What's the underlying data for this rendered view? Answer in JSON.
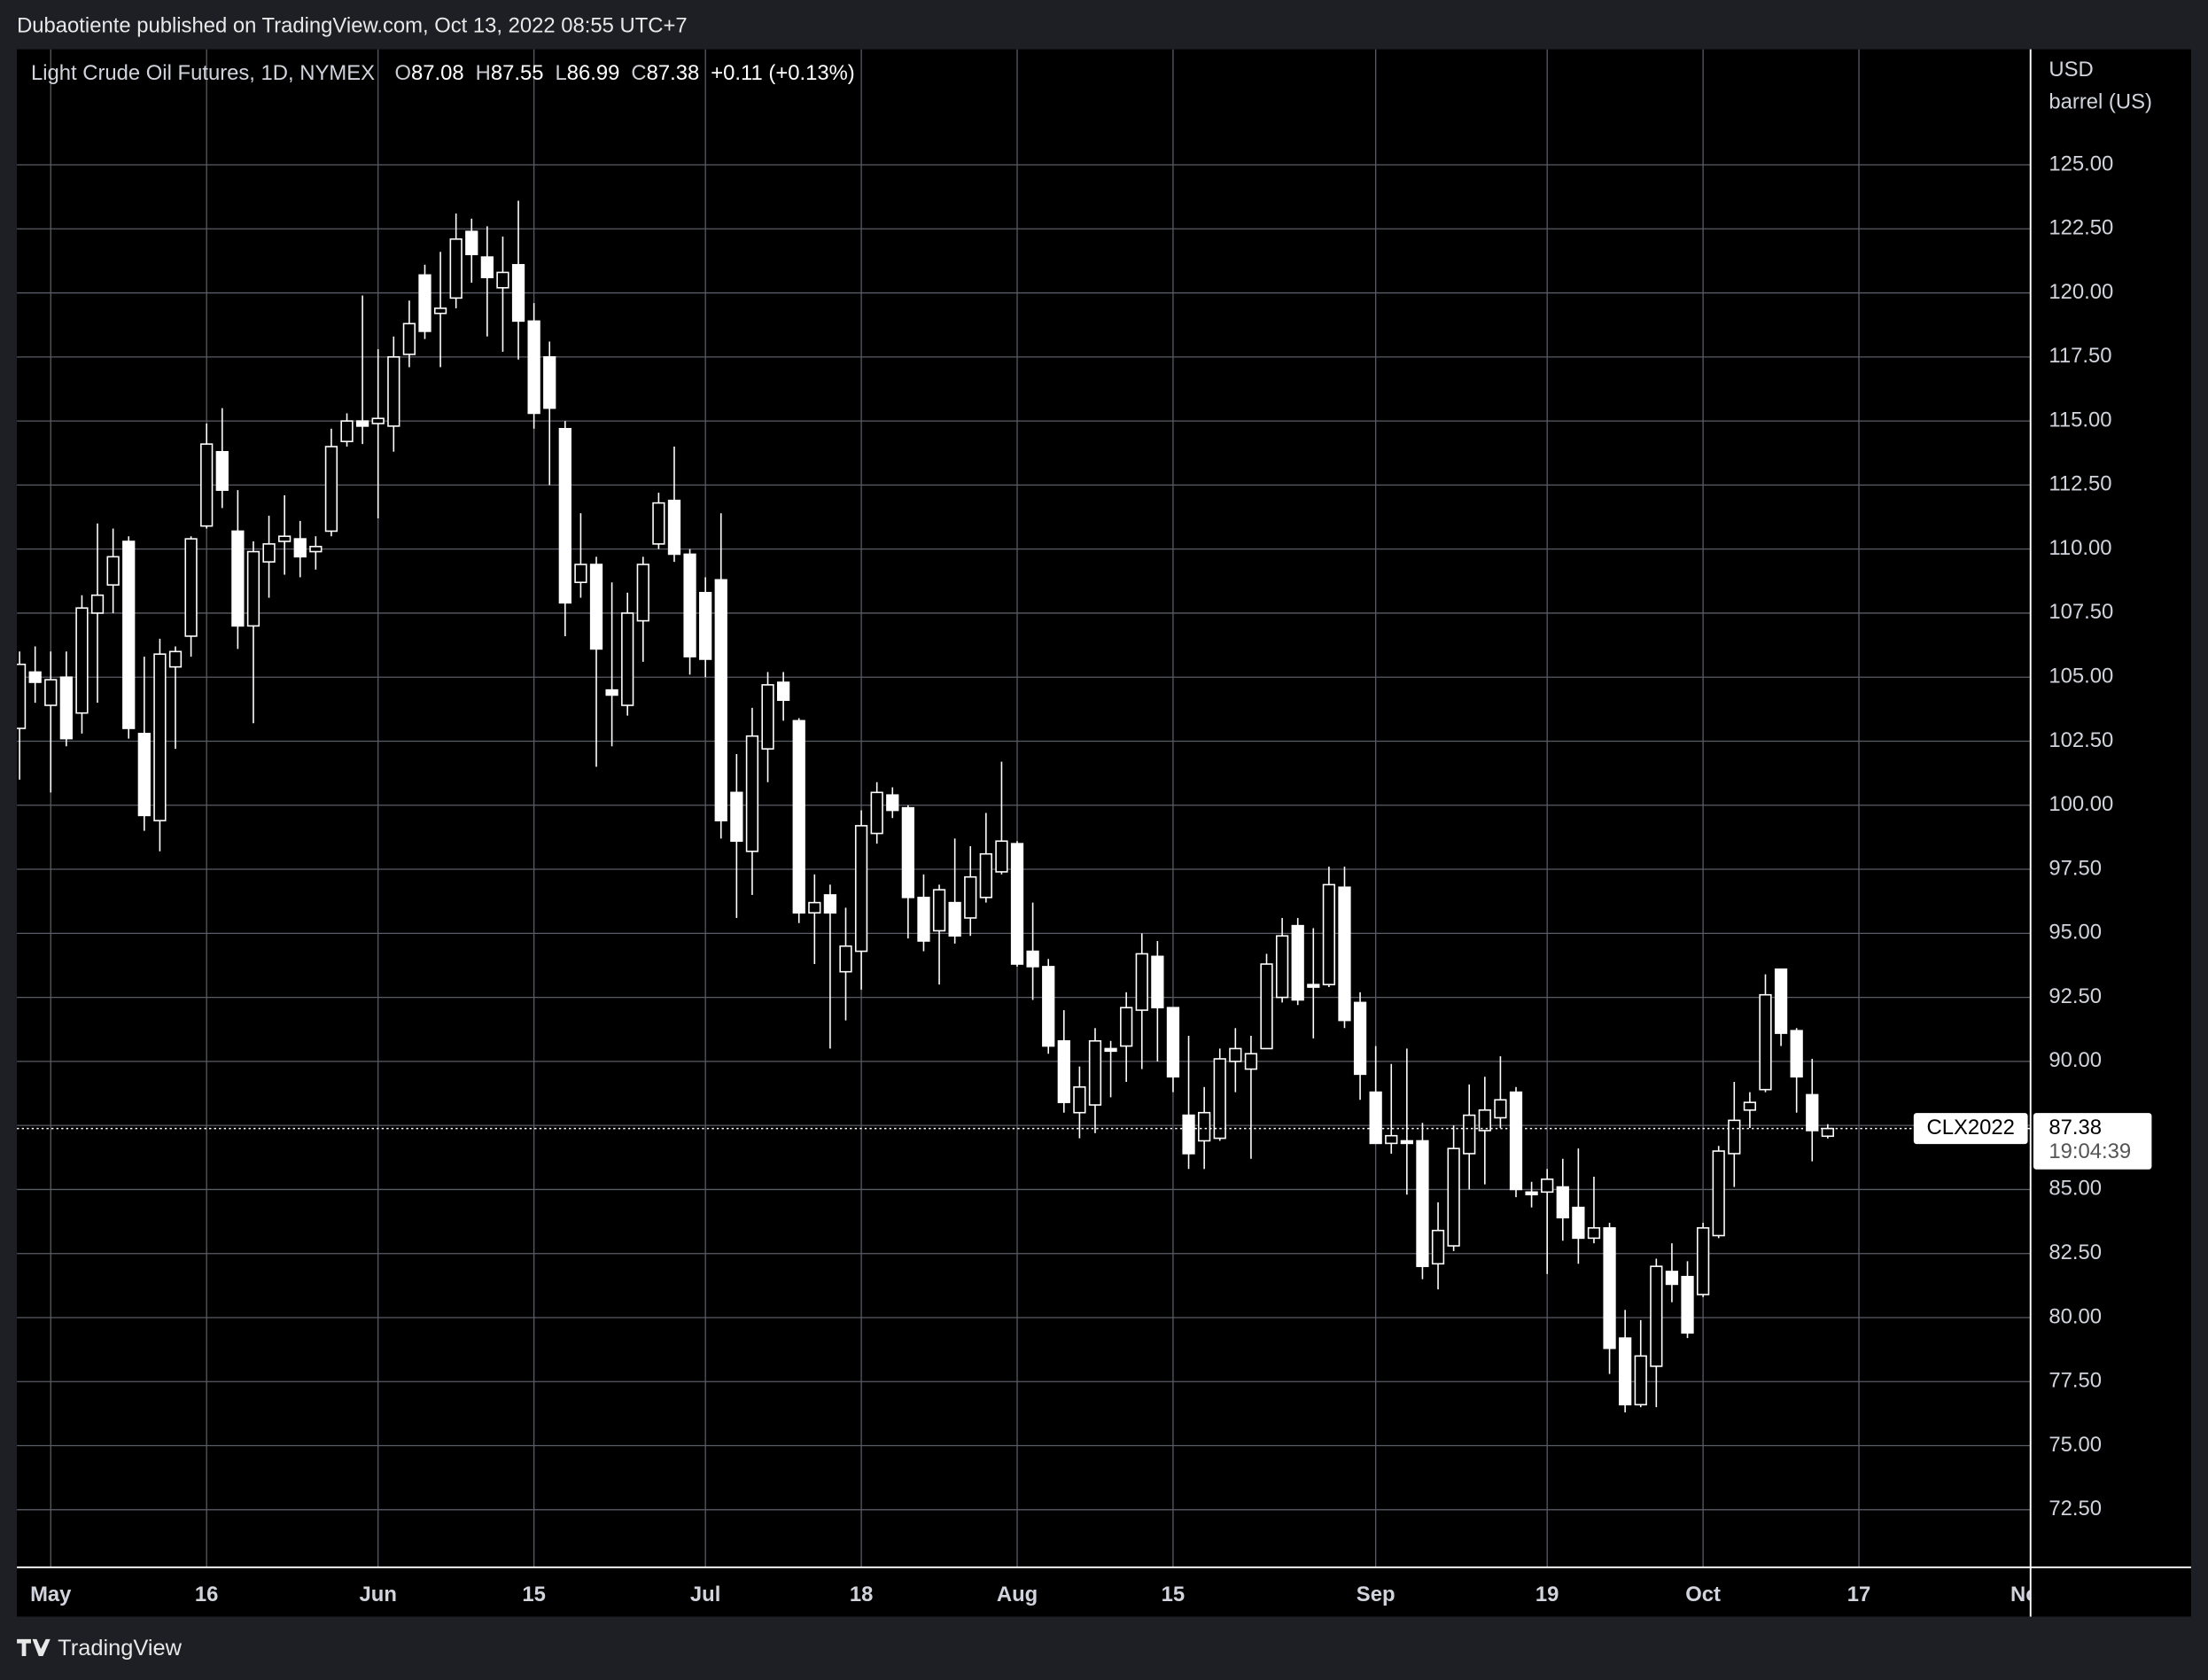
{
  "published_by": "Dubaotiente published on TradingView.com, Oct 13, 2022 08:55 UTC+7",
  "footer": "TradingView",
  "chart_data": {
    "type": "candlestick",
    "title": "Light Crude Oil Futures, 1D, NYMEX",
    "ohlc_labels": {
      "open": "O",
      "high": "H",
      "low": "L",
      "close": "C"
    },
    "change": "+0.11 (+0.13%)",
    "y_unit": "USD",
    "y_label": "barrel (US)",
    "countdown": "19:04:39",
    "grid": true,
    "grid_color": "#5a5d66",
    "x": [
      0,
      1,
      2,
      3,
      4,
      5,
      6,
      7,
      8,
      9,
      10,
      11,
      12,
      13,
      14,
      15,
      16,
      17,
      18,
      19,
      20,
      21,
      22,
      23,
      24,
      25,
      26,
      27,
      28,
      29,
      30,
      31,
      32,
      33,
      34,
      35,
      36,
      37,
      38,
      39,
      40,
      41,
      42,
      43,
      44,
      45,
      46,
      47,
      48,
      49,
      50,
      51,
      52,
      53,
      54,
      55,
      56,
      57,
      58,
      59,
      60,
      61,
      62,
      63,
      64,
      65,
      66,
      67,
      68,
      69,
      70,
      71,
      72,
      73,
      74,
      75,
      76,
      77,
      78,
      79,
      80,
      81,
      82,
      83,
      84,
      85,
      86,
      87,
      88,
      89,
      90,
      91,
      92,
      93,
      94,
      95,
      96,
      97,
      98,
      99,
      100,
      101,
      102,
      103,
      104,
      105,
      106,
      107,
      108,
      109,
      110,
      111,
      112,
      113,
      114,
      115,
      116
    ],
    "xlim": [
      -0.17,
      129.01
    ],
    "xticks": [
      {
        "value": 2,
        "label": "May"
      },
      {
        "value": 12,
        "label": "16"
      },
      {
        "value": 23,
        "label": "Jun"
      },
      {
        "value": 33,
        "label": "15"
      },
      {
        "value": 44,
        "label": "Jul"
      },
      {
        "value": 54,
        "label": "18"
      },
      {
        "value": 64,
        "label": "Aug"
      },
      {
        "value": 74,
        "label": "15"
      },
      {
        "value": 87,
        "label": "Sep"
      },
      {
        "value": 98,
        "label": "19"
      },
      {
        "value": 108,
        "label": "Oct"
      },
      {
        "value": 118,
        "label": "17"
      },
      {
        "value": 129,
        "label": "Nov"
      }
    ],
    "ylim": [
      70.25,
      129.51
    ],
    "yticks": [
      {
        "value": 72.5,
        "label": "72.50"
      },
      {
        "value": 75,
        "label": "75.00"
      },
      {
        "value": 77.5,
        "label": "77.50"
      },
      {
        "value": 80,
        "label": "80.00"
      },
      {
        "value": 82.5,
        "label": "82.50"
      },
      {
        "value": 85,
        "label": "85.00"
      },
      {
        "value": 87.5,
        "label": "87.50"
      },
      {
        "value": 90,
        "label": "90.00"
      },
      {
        "value": 92.5,
        "label": "92.50"
      },
      {
        "value": 95,
        "label": "95.00"
      },
      {
        "value": 97.5,
        "label": "97.50"
      },
      {
        "value": 100,
        "label": "100.00"
      },
      {
        "value": 102.5,
        "label": "102.50"
      },
      {
        "value": 105,
        "label": "105.00"
      },
      {
        "value": 107.5,
        "label": "107.50"
      },
      {
        "value": 110,
        "label": "110.00"
      },
      {
        "value": 112.5,
        "label": "112.50"
      },
      {
        "value": 115,
        "label": "115.00"
      },
      {
        "value": 117.5,
        "label": "117.50"
      },
      {
        "value": 120,
        "label": "120.00"
      },
      {
        "value": 122.5,
        "label": "122.50"
      },
      {
        "value": 125,
        "label": "125.00"
      }
    ],
    "series": [
      {
        "name": "CLX2022",
        "color": "#ffffff",
        "open": [
          103,
          105.2,
          103.9,
          105,
          103.6,
          107.5,
          108.6,
          110.3,
          102.8,
          99.4,
          105.4,
          106.6,
          110.9,
          113.8,
          110.7,
          107,
          109.5,
          110.3,
          110.4,
          109.9,
          110.7,
          114.2,
          115,
          114.9,
          114.8,
          117.6,
          120.7,
          119.2,
          119.8,
          122.4,
          121.4,
          120.2,
          121.1,
          118.9,
          117.5,
          114.7,
          108.7,
          109.4,
          104.5,
          103.9,
          107.2,
          110.2,
          111.9,
          109.8,
          108.3,
          108.8,
          100.5,
          98.2,
          102.2,
          104.8,
          103.3,
          95.8,
          96.5,
          93.5,
          94.3,
          98.9,
          100.4,
          99.9,
          96.4,
          95.1,
          96.2,
          95.6,
          96.4,
          97.4,
          98.5,
          94.3,
          93.7,
          90.8,
          88,
          88.3,
          90.5,
          90.6,
          92,
          94.1,
          92.1,
          87.9,
          86.9,
          87,
          90,
          89.7,
          90.5,
          92.5,
          95.3,
          93,
          93,
          96.8,
          92.3,
          88.8,
          86.8,
          86.9,
          86.9,
          82.1,
          82.8,
          86.4,
          87.3,
          87.8,
          88.8,
          84.9,
          84.9,
          85.1,
          84.3,
          83.1,
          83.5,
          79.2,
          76.6,
          78.1,
          81.8,
          81.6,
          80.9,
          83.2,
          86.4,
          88.1,
          88.9,
          93.6,
          91.2,
          88.7,
          87.08
        ],
        "high": [
          106,
          106.2,
          106,
          106,
          108.2,
          111,
          110.8,
          110.5,
          105.8,
          106.5,
          106.2,
          110.5,
          114.9,
          115.5,
          112.3,
          110.3,
          111.3,
          112.1,
          111.1,
          110.5,
          114.7,
          115.3,
          119.9,
          117.8,
          118.3,
          119.7,
          121.1,
          121.6,
          123.1,
          122.9,
          122.6,
          122.2,
          123.6,
          119.6,
          118.1,
          115,
          111.4,
          109.7,
          108.7,
          108.3,
          109.7,
          112.2,
          114,
          110,
          108.9,
          111.4,
          102,
          103.8,
          105.2,
          105.2,
          103.4,
          97.3,
          96.9,
          96,
          99.8,
          100.9,
          100.7,
          100,
          97.3,
          96.9,
          98.7,
          98.4,
          99.7,
          101.7,
          98.6,
          96.2,
          94,
          92,
          89.8,
          91.3,
          90.8,
          92.7,
          95,
          94.7,
          92.1,
          91,
          89,
          90.5,
          91.3,
          91,
          94.2,
          95.6,
          95.6,
          95.2,
          97.6,
          97.6,
          92.7,
          90.6,
          89.9,
          90.5,
          87.6,
          84.5,
          87.5,
          89.1,
          89.4,
          90.2,
          89,
          85.3,
          85.8,
          86.2,
          86.6,
          85.5,
          83.7,
          80.3,
          79.9,
          82.3,
          82.9,
          82.2,
          83.7,
          86.7,
          89.2,
          88.8,
          93.4,
          93.6,
          91.3,
          90.1,
          87.55
        ],
        "low": [
          101,
          104,
          100.5,
          102.3,
          102.8,
          104,
          107.5,
          102.6,
          99,
          98.2,
          102.2,
          105.8,
          110.8,
          111.6,
          106.1,
          103.2,
          108.1,
          109,
          108.9,
          109.2,
          110.5,
          114,
          114.1,
          111.2,
          113.8,
          117.1,
          118.2,
          117.1,
          119.4,
          120.4,
          118.3,
          117.7,
          117.4,
          114.7,
          112.5,
          106.6,
          108.1,
          101.5,
          102.3,
          103.5,
          105.6,
          110,
          109.5,
          105.1,
          105,
          98.7,
          95.6,
          96.5,
          100.9,
          103.3,
          95.4,
          93.8,
          90.5,
          91.6,
          92.8,
          98.5,
          99.5,
          94.8,
          94.3,
          93,
          94.6,
          94.9,
          96.2,
          97.3,
          93.7,
          92.4,
          90.3,
          88,
          87,
          87.2,
          88.6,
          89.2,
          89.7,
          90,
          88.8,
          85.8,
          85.8,
          86.9,
          88.8,
          86.2,
          90.5,
          92.3,
          92.2,
          90.9,
          92.9,
          91.3,
          88.5,
          86.8,
          86.4,
          84.8,
          81.5,
          81.1,
          82.6,
          85,
          85.2,
          87.4,
          84.7,
          84.3,
          81.7,
          83,
          82.1,
          82.9,
          77.8,
          76.3,
          76.5,
          76.5,
          80.6,
          79.2,
          80.8,
          83.1,
          85.1,
          87.4,
          88.8,
          90.6,
          88,
          86.1,
          86.99
        ],
        "close": [
          105.5,
          104.8,
          104.9,
          102.6,
          107.7,
          108.2,
          109.7,
          103,
          99.6,
          105.9,
          106,
          110.4,
          114.1,
          112.3,
          107,
          109.9,
          110.2,
          110.5,
          109.7,
          110.1,
          114,
          115,
          114.8,
          115.1,
          117.5,
          118.8,
          118.5,
          119.4,
          122.1,
          121.5,
          120.6,
          120.8,
          118.9,
          115.3,
          115.5,
          107.9,
          109.4,
          106.1,
          104.3,
          107.5,
          109.4,
          111.8,
          109.8,
          105.8,
          105.7,
          99.4,
          98.6,
          102.7,
          104.7,
          104.1,
          95.8,
          96.2,
          95.8,
          94.5,
          99.2,
          100.5,
          99.8,
          96.4,
          94.7,
          96.7,
          94.9,
          97.2,
          98.1,
          98.6,
          93.8,
          93.7,
          90.6,
          88.4,
          89,
          90.8,
          90.4,
          92.1,
          94.2,
          92.1,
          89.4,
          86.4,
          88,
          90.1,
          90.5,
          90.3,
          93.8,
          94.9,
          92.4,
          92.9,
          96.9,
          91.6,
          89.5,
          86.8,
          87.1,
          86.8,
          82,
          83.4,
          86.6,
          87.9,
          88.1,
          88.5,
          85,
          84.8,
          85.4,
          83.9,
          83.1,
          83.5,
          78.8,
          76.6,
          78.5,
          82,
          81.3,
          79.4,
          83.5,
          86.5,
          87.7,
          88.4,
          92.6,
          91.1,
          89.4,
          87.3,
          87.38
        ]
      }
    ]
  }
}
